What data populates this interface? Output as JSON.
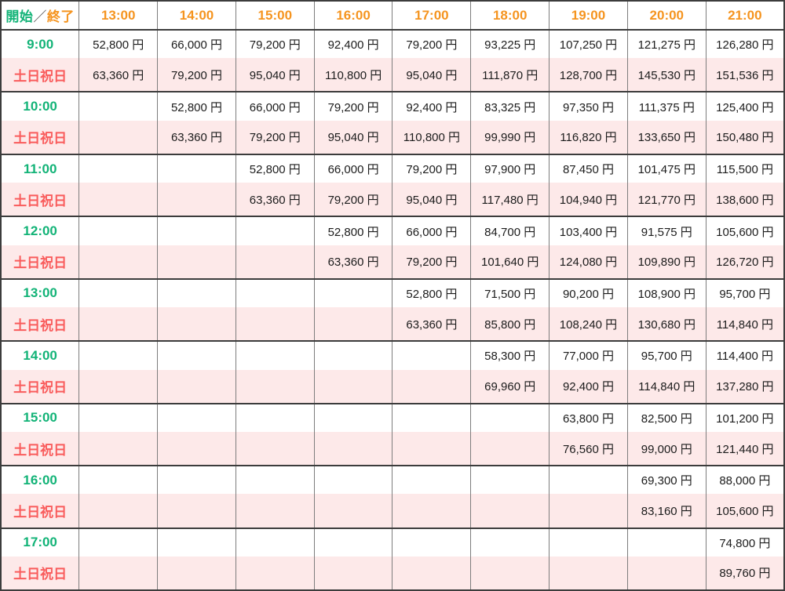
{
  "table": {
    "corner": {
      "start": "開始",
      "separator": "／",
      "end": "終了"
    },
    "end_times": [
      "13:00",
      "14:00",
      "15:00",
      "16:00",
      "17:00",
      "18:00",
      "19:00",
      "20:00",
      "21:00"
    ],
    "weekend_label": "土日祝日",
    "rows": [
      {
        "start": "9:00",
        "weekday": [
          "52,800 円",
          "66,000 円",
          "79,200 円",
          "92,400 円",
          "79,200 円",
          "93,225 円",
          "107,250 円",
          "121,275 円",
          "126,280 円"
        ],
        "weekend": [
          "63,360 円",
          "79,200 円",
          "95,040 円",
          "110,800 円",
          "95,040 円",
          "111,870 円",
          "128,700 円",
          "145,530 円",
          "151,536 円"
        ]
      },
      {
        "start": "10:00",
        "weekday": [
          "",
          "52,800 円",
          "66,000 円",
          "79,200 円",
          "92,400 円",
          "83,325 円",
          "97,350 円",
          "111,375 円",
          "125,400 円"
        ],
        "weekend": [
          "",
          "63,360 円",
          "79,200 円",
          "95,040 円",
          "110,800 円",
          "99,990 円",
          "116,820 円",
          "133,650 円",
          "150,480 円"
        ]
      },
      {
        "start": "11:00",
        "weekday": [
          "",
          "",
          "52,800 円",
          "66,000 円",
          "79,200 円",
          "97,900 円",
          "87,450 円",
          "101,475 円",
          "115,500 円"
        ],
        "weekend": [
          "",
          "",
          "63,360 円",
          "79,200 円",
          "95,040 円",
          "117,480 円",
          "104,940 円",
          "121,770 円",
          "138,600 円"
        ]
      },
      {
        "start": "12:00",
        "weekday": [
          "",
          "",
          "",
          "52,800 円",
          "66,000 円",
          "84,700 円",
          "103,400 円",
          "91,575 円",
          "105,600 円"
        ],
        "weekend": [
          "",
          "",
          "",
          "63,360 円",
          "79,200 円",
          "101,640 円",
          "124,080 円",
          "109,890 円",
          "126,720 円"
        ]
      },
      {
        "start": "13:00",
        "weekday": [
          "",
          "",
          "",
          "",
          "52,800 円",
          "71,500 円",
          "90,200 円",
          "108,900 円",
          "95,700 円"
        ],
        "weekend": [
          "",
          "",
          "",
          "",
          "63,360 円",
          "85,800 円",
          "108,240 円",
          "130,680 円",
          "114,840 円"
        ]
      },
      {
        "start": "14:00",
        "weekday": [
          "",
          "",
          "",
          "",
          "",
          "58,300 円",
          "77,000 円",
          "95,700 円",
          "114,400 円"
        ],
        "weekend": [
          "",
          "",
          "",
          "",
          "",
          "69,960 円",
          "92,400 円",
          "114,840 円",
          "137,280 円"
        ]
      },
      {
        "start": "15:00",
        "weekday": [
          "",
          "",
          "",
          "",
          "",
          "",
          "63,800 円",
          "82,500 円",
          "101,200 円"
        ],
        "weekend": [
          "",
          "",
          "",
          "",
          "",
          "",
          "76,560 円",
          "99,000 円",
          "121,440 円"
        ]
      },
      {
        "start": "16:00",
        "weekday": [
          "",
          "",
          "",
          "",
          "",
          "",
          "",
          "69,300 円",
          "88,000 円"
        ],
        "weekend": [
          "",
          "",
          "",
          "",
          "",
          "",
          "",
          "83,160 円",
          "105,600 円"
        ]
      },
      {
        "start": "17:00",
        "weekday": [
          "",
          "",
          "",
          "",
          "",
          "",
          "",
          "",
          "74,800 円"
        ],
        "weekend": [
          "",
          "",
          "",
          "",
          "",
          "",
          "",
          "",
          "89,760 円"
        ]
      }
    ]
  },
  "colors": {
    "start_time_green": "#12b377",
    "end_time_orange": "#f5941f",
    "weekend_red": "#f95c5c",
    "weekend_row_pink": "#fde9e9",
    "border_dark": "#3c3c3c",
    "border_light": "#7d7d7d",
    "price_text": "#1c1c1c"
  }
}
